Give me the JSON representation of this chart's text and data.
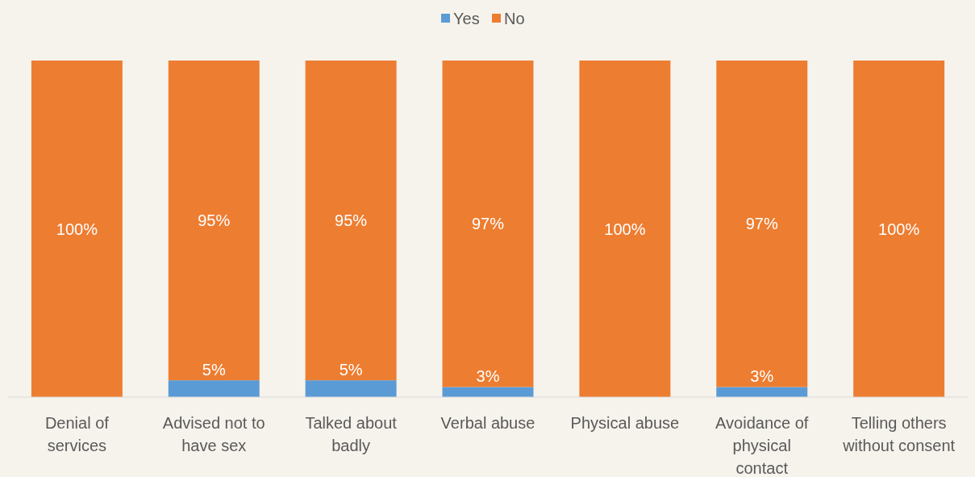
{
  "chart_data": {
    "type": "bar",
    "stacked": true,
    "categories": [
      "Denial of services",
      "Advised not to have sex",
      "Talked about badly",
      "Verbal abuse",
      "Physical abuse",
      "Avoidance of physical contact",
      "Telling others without consent"
    ],
    "series": [
      {
        "name": "Yes",
        "color": "#5b9bd5",
        "values": [
          0,
          5,
          5,
          3,
          0,
          3,
          0
        ],
        "value_labels": [
          null,
          "5%",
          "5%",
          "3%",
          null,
          "3%",
          null
        ]
      },
      {
        "name": "No",
        "color": "#ed7d31",
        "values": [
          100,
          95,
          95,
          97,
          100,
          97,
          100
        ],
        "value_labels": [
          "100%",
          "95%",
          "95%",
          "97%",
          "100%",
          "97%",
          "100%"
        ]
      }
    ],
    "ylim": [
      0,
      100
    ],
    "legend": "top"
  }
}
